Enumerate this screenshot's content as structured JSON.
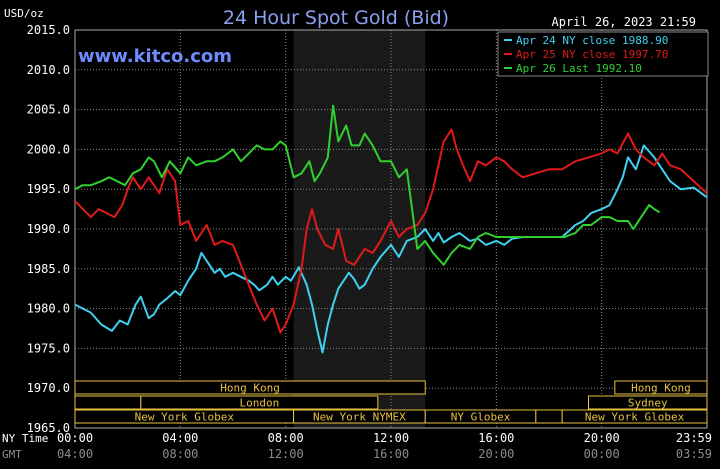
{
  "header": {
    "units": "USD/oz",
    "title": "24 Hour Spot Gold (Bid)",
    "timestamp": "April 26, 2023 21:59",
    "website": "www.kitco.com"
  },
  "time_axes": {
    "ny_label": "NY Time",
    "gmt_label": "GMT",
    "ny_ticks": [
      "00:00",
      "04:00",
      "08:00",
      "12:00",
      "16:00",
      "20:00",
      "23:59"
    ],
    "gmt_ticks": [
      "04:00",
      "08:00",
      "12:00",
      "16:00",
      "20:00",
      "00:00",
      "03:59"
    ]
  },
  "sessions": [
    {
      "row": 0,
      "label": "Hong Kong",
      "start": 0,
      "end": 13.3
    },
    {
      "row": 0,
      "label": "Hong Kong",
      "start": 20.5,
      "end": 24
    },
    {
      "row": 1,
      "label": "",
      "start": 0,
      "end": 2.5
    },
    {
      "row": 1,
      "label": "London",
      "start": 2.5,
      "end": 11.5
    },
    {
      "row": 1,
      "label": "Sydney",
      "start": 19.5,
      "end": 24
    },
    {
      "row": 2,
      "label": "New York Globex",
      "start": 0,
      "end": 8.3
    },
    {
      "row": 2,
      "label": "New York NYMEX",
      "start": 8.3,
      "end": 13.3
    },
    {
      "row": 2,
      "label": "NY Globex",
      "start": 13.3,
      "end": 17.5
    },
    {
      "row": 2,
      "label": "",
      "start": 17.5,
      "end": 18.5
    },
    {
      "row": 2,
      "label": "New York Globex",
      "start": 18.5,
      "end": 24
    }
  ],
  "colors": {
    "background": "#000000",
    "grid": "#8a8a8a",
    "shade": "#1a1a1a",
    "session_border": "#e8c040",
    "apr24": "#40d0f0",
    "apr25": "#e01a1a",
    "apr26": "#30d030"
  },
  "chart_data": {
    "type": "line",
    "title": "24 Hour Spot Gold (Bid)",
    "ylabel": "USD/oz",
    "ylim": [
      1965,
      2015
    ],
    "ytick_step": 5,
    "xlim": [
      0,
      24
    ],
    "xlabel": "NY Time",
    "shaded_region": [
      8.3,
      13.3
    ],
    "series": [
      {
        "name": "Apr 24 NY close 1988.90",
        "color_key": "apr24",
        "x": [
          0,
          0.3,
          0.6,
          1.0,
          1.4,
          1.7,
          2.0,
          2.3,
          2.5,
          2.8,
          3.0,
          3.2,
          3.5,
          3.8,
          4.0,
          4.3,
          4.6,
          4.8,
          5.0,
          5.3,
          5.5,
          5.7,
          6.0,
          6.3,
          6.6,
          6.8,
          7.0,
          7.3,
          7.5,
          7.7,
          8.0,
          8.2,
          8.5,
          8.8,
          9.0,
          9.2,
          9.4,
          9.6,
          9.8,
          10.0,
          10.2,
          10.4,
          10.6,
          10.8,
          11.0,
          11.3,
          11.6,
          12.0,
          12.3,
          12.6,
          13.0,
          13.3,
          13.6,
          13.8,
          14.0,
          14.3,
          14.6,
          15.0,
          15.3,
          15.6,
          16.0,
          16.3,
          16.6,
          17.0,
          17.5,
          18.0,
          18.5,
          19.0,
          19.3,
          19.6,
          20.0,
          20.3,
          20.6,
          20.8,
          21.0,
          21.3,
          21.6,
          22.0,
          22.3,
          22.6,
          23.0,
          23.5,
          23.99
        ],
        "values": [
          1980.5,
          1980.0,
          1979.5,
          1978.0,
          1977.2,
          1978.5,
          1978.0,
          1980.5,
          1981.5,
          1978.8,
          1979.3,
          1980.5,
          1981.3,
          1982.2,
          1981.7,
          1983.5,
          1985.0,
          1987.0,
          1986.0,
          1984.5,
          1985.0,
          1984.0,
          1984.5,
          1984.0,
          1983.5,
          1983.0,
          1982.3,
          1983.0,
          1984.0,
          1983.0,
          1984.0,
          1983.5,
          1985.2,
          1983.0,
          1980.5,
          1977.3,
          1974.5,
          1978.0,
          1980.5,
          1982.5,
          1983.5,
          1984.5,
          1983.7,
          1982.5,
          1983.0,
          1985.0,
          1986.5,
          1988.0,
          1986.5,
          1988.5,
          1989.0,
          1990.0,
          1988.5,
          1989.5,
          1988.3,
          1989.0,
          1989.5,
          1988.5,
          1988.8,
          1988.0,
          1988.5,
          1988.0,
          1988.8,
          1989.0,
          1989.0,
          1989.0,
          1989.0,
          1990.5,
          1991.0,
          1992.0,
          1992.5,
          1993.0,
          1995.0,
          1996.5,
          1999.0,
          1997.5,
          2000.5,
          1999.0,
          1997.5,
          1996.0,
          1995.0,
          1995.2,
          1994.0
        ]
      },
      {
        "name": "Apr 25 NY close 1997.70",
        "color_key": "apr25",
        "x": [
          0,
          0.3,
          0.6,
          0.9,
          1.2,
          1.5,
          1.8,
          2.0,
          2.2,
          2.5,
          2.8,
          3.0,
          3.2,
          3.5,
          3.8,
          4.0,
          4.3,
          4.6,
          5.0,
          5.3,
          5.6,
          6.0,
          6.3,
          6.6,
          6.9,
          7.2,
          7.5,
          7.8,
          8.0,
          8.3,
          8.6,
          8.8,
          9.0,
          9.2,
          9.5,
          9.8,
          10.0,
          10.3,
          10.6,
          11.0,
          11.3,
          11.6,
          12.0,
          12.3,
          12.6,
          13.0,
          13.3,
          13.6,
          14.0,
          14.3,
          14.5,
          14.8,
          15.0,
          15.3,
          15.6,
          16.0,
          16.3,
          16.6,
          17.0,
          17.5,
          18.0,
          18.5,
          19.0,
          19.5,
          20.0,
          20.3,
          20.6,
          21.0,
          21.3,
          21.6,
          22.0,
          22.3,
          22.6,
          23.0,
          23.5,
          23.99
        ],
        "values": [
          1993.5,
          1992.5,
          1991.5,
          1992.5,
          1992.0,
          1991.5,
          1993.0,
          1995.0,
          1996.5,
          1995.0,
          1996.5,
          1995.5,
          1994.5,
          1997.5,
          1996.0,
          1990.5,
          1991.0,
          1988.5,
          1990.5,
          1988.0,
          1988.5,
          1988.0,
          1985.5,
          1983.0,
          1980.5,
          1978.5,
          1980.0,
          1977.0,
          1978.0,
          1980.5,
          1985.0,
          1990.0,
          1992.5,
          1990.0,
          1988.0,
          1987.5,
          1990.0,
          1986.0,
          1985.5,
          1987.5,
          1987.0,
          1988.5,
          1991.0,
          1989.0,
          1990.0,
          1990.5,
          1992.0,
          1995.0,
          2001.0,
          2002.5,
          2000.0,
          1997.5,
          1996.0,
          1998.5,
          1998.0,
          1999.0,
          1998.5,
          1997.5,
          1996.5,
          1997.0,
          1997.5,
          1997.5,
          1998.5,
          1999.0,
          1999.5,
          2000.0,
          1999.5,
          2002.0,
          2000.0,
          1999.0,
          1998.0,
          1999.5,
          1998.0,
          1997.5,
          1996.0,
          1994.5
        ]
      },
      {
        "name": "Apr 26 Last 1992.10",
        "color_key": "apr26",
        "x": [
          0,
          0.3,
          0.6,
          1.0,
          1.3,
          1.6,
          1.9,
          2.2,
          2.5,
          2.8,
          3.0,
          3.3,
          3.6,
          4.0,
          4.3,
          4.6,
          5.0,
          5.3,
          5.6,
          6.0,
          6.3,
          6.6,
          6.9,
          7.2,
          7.5,
          7.8,
          8.0,
          8.3,
          8.6,
          8.9,
          9.1,
          9.3,
          9.6,
          9.8,
          10.0,
          10.3,
          10.5,
          10.8,
          11.0,
          11.3,
          11.6,
          12.0,
          12.3,
          12.6,
          13.0,
          13.3,
          13.6,
          14.0,
          14.3,
          14.6,
          15.0,
          15.3,
          15.6,
          16.0,
          16.3,
          16.6,
          17.0,
          17.5,
          18.0,
          18.3,
          18.6,
          19.0,
          19.3,
          19.6,
          20.0,
          20.3,
          20.6,
          21.0,
          21.2,
          21.5,
          21.8,
          22.0,
          22.2
        ],
        "values": [
          1995.0,
          1995.5,
          1995.5,
          1996.0,
          1996.5,
          1996.0,
          1995.5,
          1997.0,
          1997.5,
          1999.0,
          1998.5,
          1996.5,
          1998.5,
          1997.0,
          1999.0,
          1998.0,
          1998.5,
          1998.5,
          1999.0,
          2000.0,
          1998.5,
          1999.5,
          2000.5,
          2000.0,
          2000.0,
          2001.0,
          2000.5,
          1996.5,
          1997.0,
          1998.5,
          1996.0,
          1997.0,
          1999.0,
          2005.5,
          2001.0,
          2003.0,
          2000.5,
          2000.5,
          2002.0,
          2000.5,
          1998.5,
          1998.5,
          1996.5,
          1997.5,
          1987.5,
          1988.5,
          1987.0,
          1985.5,
          1987.0,
          1988.0,
          1987.5,
          1989.0,
          1989.5,
          1989.0,
          1989.0,
          1989.0,
          1989.0,
          1989.0,
          1989.0,
          1989.0,
          1989.0,
          1989.5,
          1990.5,
          1990.5,
          1991.5,
          1991.5,
          1991.0,
          1991.0,
          1990.0,
          1991.5,
          1993.0,
          1992.5,
          1992.1
        ]
      }
    ]
  }
}
